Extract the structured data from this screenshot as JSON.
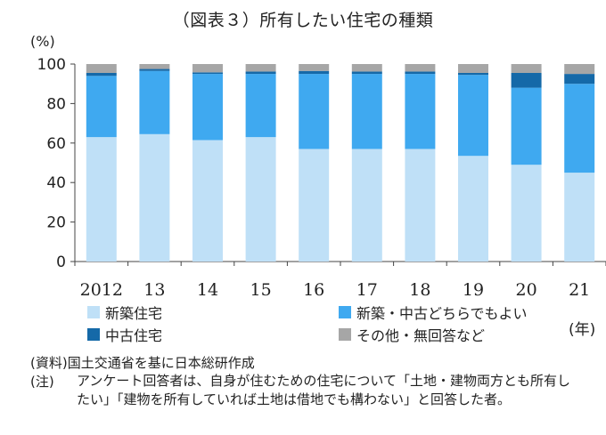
{
  "title": "（図表３）所有したい住宅の種類",
  "chart_data": {
    "type": "bar",
    "stacked": true,
    "y_unit_label": "(%)",
    "x_unit_label": "(年)",
    "categories": [
      "2012",
      "13",
      "14",
      "15",
      "16",
      "17",
      "18",
      "19",
      "20",
      "21"
    ],
    "yticks": [
      "0",
      "20",
      "40",
      "60",
      "80",
      "100"
    ],
    "ylim": [
      0,
      100
    ],
    "grid": false,
    "legend_position": "bottom",
    "series": [
      {
        "name": "新築住宅",
        "color": "#bfe0f7",
        "values": [
          63,
          64.5,
          61.5,
          63,
          57,
          57,
          57,
          53.5,
          49,
          45
        ]
      },
      {
        "name": "新築・中古どちらでもよい",
        "color": "#3fa9f0",
        "values": [
          31,
          32,
          33.5,
          32,
          38,
          38,
          38,
          41,
          39,
          45
        ]
      },
      {
        "name": "中古住宅",
        "color": "#1569a8",
        "values": [
          1.5,
          1,
          0.8,
          1.2,
          1.5,
          1.2,
          1.2,
          1,
          7.5,
          5
        ]
      },
      {
        "name": "その他・無回答など",
        "color": "#a6a6a6",
        "values": [
          4.5,
          2.5,
          4.2,
          3.8,
          3.5,
          3.8,
          3.8,
          4.5,
          4.5,
          5
        ]
      }
    ]
  },
  "source": "(資料)国土交通省を基に日本総研作成",
  "note_label": "(注)",
  "note": "アンケート回答者は、自身が住むための住宅について「土地・建物両方とも所有したい」「建物を所有していれば土地は借地でも構わない」と回答した者。"
}
